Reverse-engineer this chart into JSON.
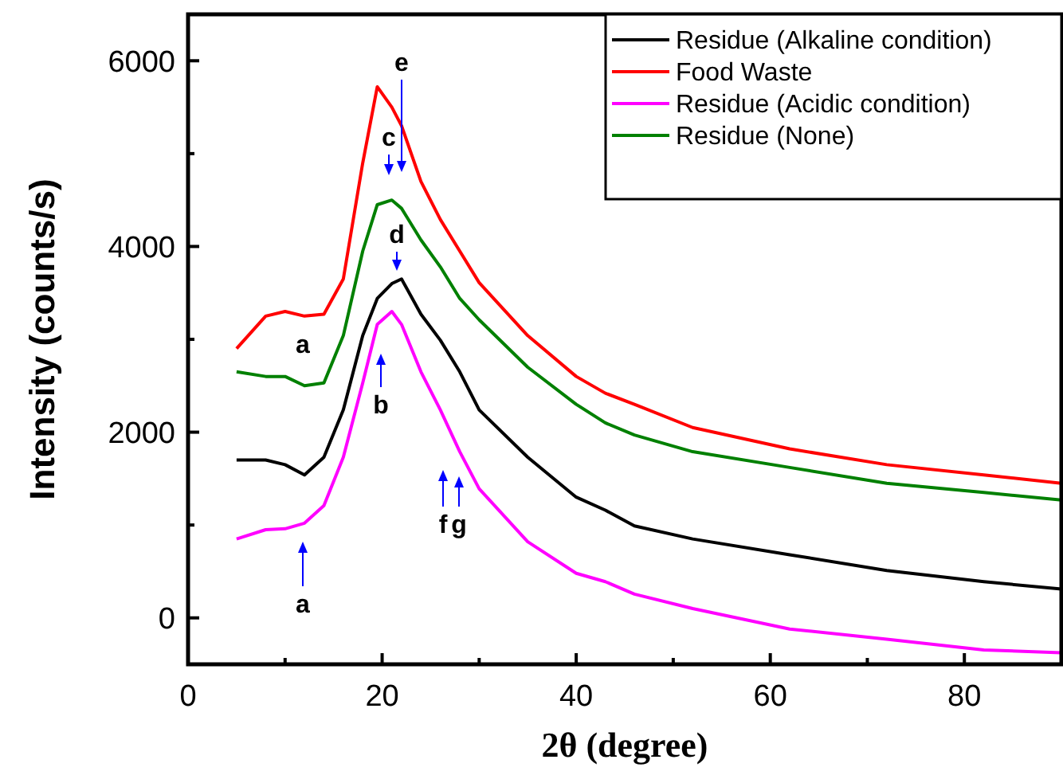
{
  "chart_data": {
    "type": "line",
    "xlabel": "2θ (degree)",
    "ylabel": "Intensity (counts/s)",
    "x": [
      5,
      8,
      10,
      12,
      14,
      16,
      18,
      19.5,
      21,
      22,
      24,
      26,
      28,
      30,
      35,
      40,
      43,
      46,
      52,
      62,
      72,
      82,
      90
    ],
    "series": [
      {
        "name": "Residue (Alkaline condition)",
        "color": "#000000",
        "values": [
          1700,
          1700,
          1650,
          1540,
          1730,
          2240,
          3040,
          3440,
          3600,
          3650,
          3270,
          2990,
          2650,
          2240,
          1730,
          1300,
          1160,
          990,
          850,
          680,
          510,
          390,
          310
        ]
      },
      {
        "name": "Food Waste",
        "color": "#ff0000",
        "values": [
          2900,
          3250,
          3300,
          3250,
          3270,
          3650,
          4900,
          5720,
          5500,
          5300,
          4700,
          4290,
          3950,
          3610,
          3040,
          2600,
          2420,
          2300,
          2050,
          1820,
          1650,
          1540,
          1450
        ]
      },
      {
        "name": "Residue (Acidic condition)",
        "color": "#ff00ff",
        "values": [
          850,
          950,
          960,
          1020,
          1210,
          1730,
          2530,
          3160,
          3300,
          3160,
          2650,
          2240,
          1790,
          1390,
          820,
          480,
          390,
          256,
          100,
          -120,
          -230,
          -345,
          -375
        ]
      },
      {
        "name": "Residue (None)",
        "color": "#008000",
        "values": [
          2650,
          2600,
          2600,
          2500,
          2530,
          3040,
          3950,
          4450,
          4500,
          4410,
          4070,
          3780,
          3440,
          3210,
          2700,
          2300,
          2100,
          1970,
          1790,
          1620,
          1450,
          1350,
          1270
        ]
      }
    ],
    "xlim": [
      0,
      90
    ],
    "ylim": [
      -500,
      6500
    ],
    "xticks": [
      0,
      {
        "value": 10,
        "label": null
      },
      20,
      {
        "value": 30,
        "label": null
      },
      40,
      {
        "value": 50,
        "label": null
      },
      60,
      {
        "value": 70,
        "label": null
      },
      80
    ],
    "yticks": [
      0,
      {
        "value": 1000,
        "label": null
      },
      2000,
      {
        "value": 3000,
        "label": null
      },
      4000,
      {
        "value": 5000,
        "label": null
      },
      6000
    ],
    "grid": false,
    "legend": "top right",
    "marker": "none",
    "line_style": "solid",
    "annotations": [
      "a",
      "a",
      "b",
      "c",
      "d",
      "e",
      "f",
      "g"
    ]
  }
}
